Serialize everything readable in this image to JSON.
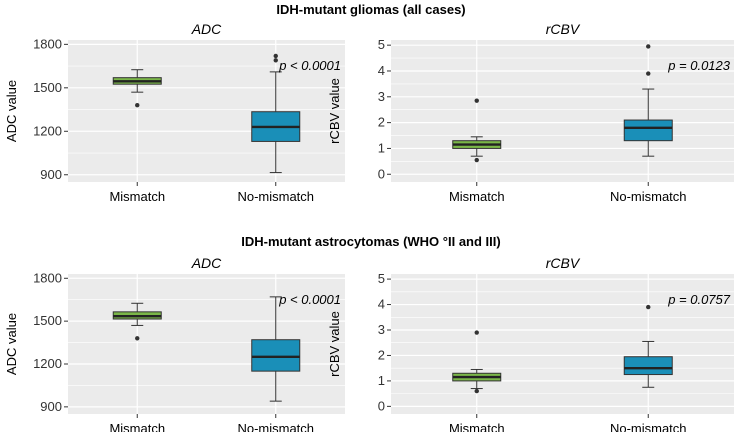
{
  "figure": {
    "section_titles": [
      "IDH-mutant gliomas (all cases)",
      "IDH-mutant astrocytomas (WHO °II and III)"
    ]
  },
  "colors": {
    "mismatch_fill": "#7ab648",
    "nomismatch_fill": "#1a8fb8",
    "panel_bg": "#ebebeb",
    "grid": "#ffffff"
  },
  "chart_data": [
    {
      "type": "boxplot",
      "section": 0,
      "title": "ADC",
      "ylabel": "ADC value",
      "ylim": [
        850,
        1830
      ],
      "yticks": [
        900,
        1200,
        1500,
        1800
      ],
      "categories": [
        "Mismatch",
        "No-mismatch"
      ],
      "boxes": [
        {
          "name": "Mismatch",
          "whisker_low": 1470,
          "q1": 1525,
          "median": 1545,
          "q3": 1570,
          "whisker_high": 1625,
          "outliers": [
            1380
          ]
        },
        {
          "name": "No-mismatch",
          "whisker_low": 915,
          "q1": 1130,
          "median": 1230,
          "q3": 1335,
          "whisker_high": 1610,
          "outliers": [
            1690,
            1720
          ]
        }
      ],
      "pvalue": "p < 0.0001"
    },
    {
      "type": "boxplot",
      "section": 0,
      "title": "rCBV",
      "ylabel": "rCBV value",
      "ylim": [
        -0.3,
        5.2
      ],
      "yticks": [
        0,
        1,
        2,
        3,
        4,
        5
      ],
      "categories": [
        "Mismatch",
        "No-mismatch"
      ],
      "boxes": [
        {
          "name": "Mismatch",
          "whisker_low": 0.7,
          "q1": 1.0,
          "median": 1.15,
          "q3": 1.3,
          "whisker_high": 1.45,
          "outliers": [
            0.55,
            2.85
          ]
        },
        {
          "name": "No-mismatch",
          "whisker_low": 0.7,
          "q1": 1.3,
          "median": 1.8,
          "q3": 2.1,
          "whisker_high": 3.3,
          "outliers": [
            3.9,
            4.95
          ]
        }
      ],
      "pvalue": "p = 0.0123"
    },
    {
      "type": "boxplot",
      "section": 1,
      "title": "ADC",
      "ylabel": "ADC value",
      "ylim": [
        850,
        1830
      ],
      "yticks": [
        900,
        1200,
        1500,
        1800
      ],
      "categories": [
        "Mismatch",
        "No-mismatch"
      ],
      "boxes": [
        {
          "name": "Mismatch",
          "whisker_low": 1470,
          "q1": 1515,
          "median": 1535,
          "q3": 1565,
          "whisker_high": 1625,
          "outliers": [
            1380
          ]
        },
        {
          "name": "No-mismatch",
          "whisker_low": 940,
          "q1": 1150,
          "median": 1250,
          "q3": 1370,
          "whisker_high": 1670,
          "outliers": []
        }
      ],
      "pvalue": "p < 0.0001"
    },
    {
      "type": "boxplot",
      "section": 1,
      "title": "rCBV",
      "ylabel": "rCBV value",
      "ylim": [
        -0.3,
        5.2
      ],
      "yticks": [
        0,
        1,
        2,
        3,
        4,
        5
      ],
      "categories": [
        "Mismatch",
        "No-mismatch"
      ],
      "boxes": [
        {
          "name": "Mismatch",
          "whisker_low": 0.7,
          "q1": 1.0,
          "median": 1.15,
          "q3": 1.3,
          "whisker_high": 1.45,
          "outliers": [
            0.6,
            2.9
          ]
        },
        {
          "name": "No-mismatch",
          "whisker_low": 0.75,
          "q1": 1.25,
          "median": 1.5,
          "q3": 1.95,
          "whisker_high": 2.55,
          "outliers": [
            3.9
          ]
        }
      ],
      "pvalue": "p = 0.0757"
    }
  ]
}
